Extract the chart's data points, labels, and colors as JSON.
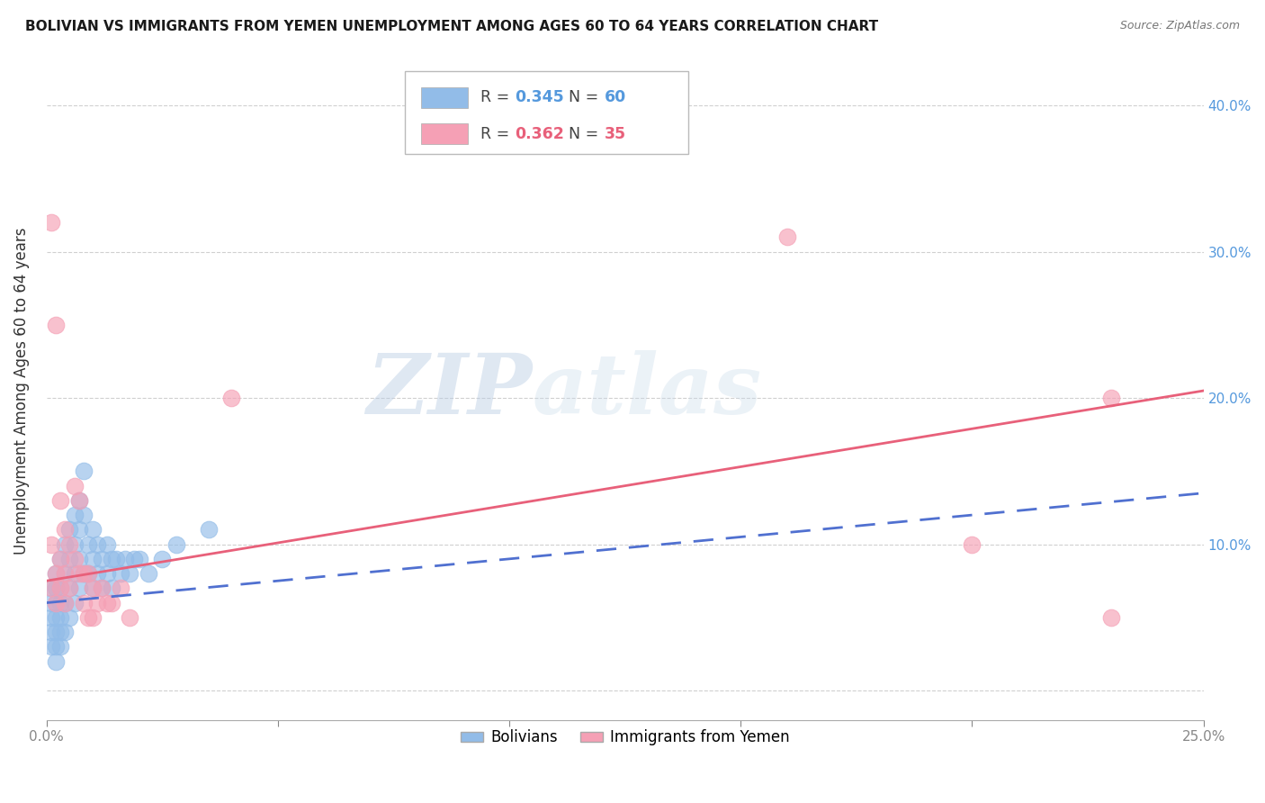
{
  "title": "BOLIVIAN VS IMMIGRANTS FROM YEMEN UNEMPLOYMENT AMONG AGES 60 TO 64 YEARS CORRELATION CHART",
  "source": "Source: ZipAtlas.com",
  "ylabel": "Unemployment Among Ages 60 to 64 years",
  "xlim": [
    0.0,
    0.25
  ],
  "ylim": [
    -0.02,
    0.43
  ],
  "yticks": [
    0.0,
    0.1,
    0.2,
    0.3,
    0.4
  ],
  "xticks": [
    0.0,
    0.05,
    0.1,
    0.15,
    0.2,
    0.25
  ],
  "blue_R": "0.345",
  "blue_N": "60",
  "pink_R": "0.362",
  "pink_N": "35",
  "blue_color": "#92bce8",
  "pink_color": "#f5a0b5",
  "blue_line_color": "#5070d0",
  "pink_line_color": "#e8607a",
  "legend_label_blue": "Bolivians",
  "legend_label_pink": "Immigrants from Yemen",
  "watermark_zip": "ZIP",
  "watermark_atlas": "atlas",
  "blue_x": [
    0.001,
    0.001,
    0.001,
    0.001,
    0.001,
    0.002,
    0.002,
    0.002,
    0.002,
    0.002,
    0.002,
    0.002,
    0.003,
    0.003,
    0.003,
    0.003,
    0.003,
    0.003,
    0.004,
    0.004,
    0.004,
    0.004,
    0.005,
    0.005,
    0.005,
    0.005,
    0.006,
    0.006,
    0.006,
    0.006,
    0.007,
    0.007,
    0.007,
    0.007,
    0.008,
    0.008,
    0.008,
    0.009,
    0.009,
    0.01,
    0.01,
    0.01,
    0.011,
    0.011,
    0.012,
    0.012,
    0.013,
    0.013,
    0.014,
    0.014,
    0.015,
    0.016,
    0.017,
    0.018,
    0.019,
    0.02,
    0.022,
    0.025,
    0.028,
    0.035
  ],
  "blue_y": [
    0.07,
    0.05,
    0.04,
    0.06,
    0.03,
    0.08,
    0.06,
    0.05,
    0.04,
    0.07,
    0.03,
    0.02,
    0.09,
    0.07,
    0.06,
    0.05,
    0.04,
    0.03,
    0.1,
    0.08,
    0.06,
    0.04,
    0.11,
    0.09,
    0.07,
    0.05,
    0.12,
    0.1,
    0.08,
    0.06,
    0.13,
    0.11,
    0.09,
    0.07,
    0.15,
    0.12,
    0.08,
    0.1,
    0.08,
    0.11,
    0.09,
    0.07,
    0.1,
    0.08,
    0.09,
    0.07,
    0.1,
    0.08,
    0.09,
    0.07,
    0.09,
    0.08,
    0.09,
    0.08,
    0.09,
    0.09,
    0.08,
    0.09,
    0.1,
    0.11
  ],
  "pink_x": [
    0.001,
    0.001,
    0.001,
    0.002,
    0.002,
    0.002,
    0.003,
    0.003,
    0.003,
    0.004,
    0.004,
    0.004,
    0.005,
    0.005,
    0.006,
    0.006,
    0.007,
    0.007,
    0.008,
    0.008,
    0.009,
    0.009,
    0.01,
    0.01,
    0.011,
    0.012,
    0.013,
    0.014,
    0.016,
    0.018,
    0.04,
    0.16,
    0.2,
    0.23,
    0.23
  ],
  "pink_y": [
    0.32,
    0.1,
    0.07,
    0.25,
    0.08,
    0.06,
    0.13,
    0.09,
    0.07,
    0.11,
    0.08,
    0.06,
    0.1,
    0.07,
    0.14,
    0.09,
    0.13,
    0.08,
    0.08,
    0.06,
    0.08,
    0.05,
    0.07,
    0.05,
    0.06,
    0.07,
    0.06,
    0.06,
    0.07,
    0.05,
    0.2,
    0.31,
    0.1,
    0.2,
    0.05
  ],
  "blue_line_x0": 0.0,
  "blue_line_x1": 0.25,
  "blue_line_y0": 0.06,
  "blue_line_y1": 0.135,
  "pink_line_x0": 0.0,
  "pink_line_x1": 0.25,
  "pink_line_y0": 0.075,
  "pink_line_y1": 0.205
}
